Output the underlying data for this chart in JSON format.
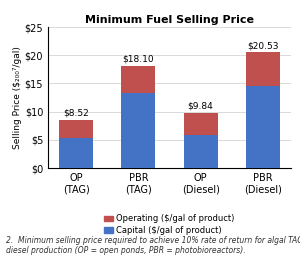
{
  "categories": [
    "OP\n(TAG)",
    "PBR\n(TAG)",
    "OP\n(Diesel)",
    "PBR\n(Diesel)"
  ],
  "capital": [
    5.25,
    13.25,
    5.84,
    14.53
  ],
  "operating": [
    3.27,
    4.85,
    4.0,
    6.0
  ],
  "totals": [
    8.52,
    18.1,
    9.84,
    20.53
  ],
  "total_labels": [
    "$8.52",
    "$18.10",
    "$9.84",
    "$20.53"
  ],
  "capital_color": "#4472C4",
  "operating_color": "#C0504D",
  "title": "Minimum Fuel Selling Price",
  "ylim": [
    0,
    25
  ],
  "yticks": [
    0,
    5,
    10,
    15,
    20,
    25
  ],
  "ytick_labels": [
    "$0",
    "$5",
    "$10",
    "$15",
    "$20",
    "$25"
  ],
  "legend_operating": "Operating ($/gal of product)",
  "legend_capital": "Capital ($/gal of product)",
  "caption": "2.  Minimum selling price required to achieve 10% rate of return for algal TAG\ndiesel production (OP = open ponds, PBR = photobioreactors).",
  "bar_width": 0.55,
  "figsize": [
    3.0,
    2.71
  ],
  "dpi": 100,
  "bg_color": "#f0ece4"
}
